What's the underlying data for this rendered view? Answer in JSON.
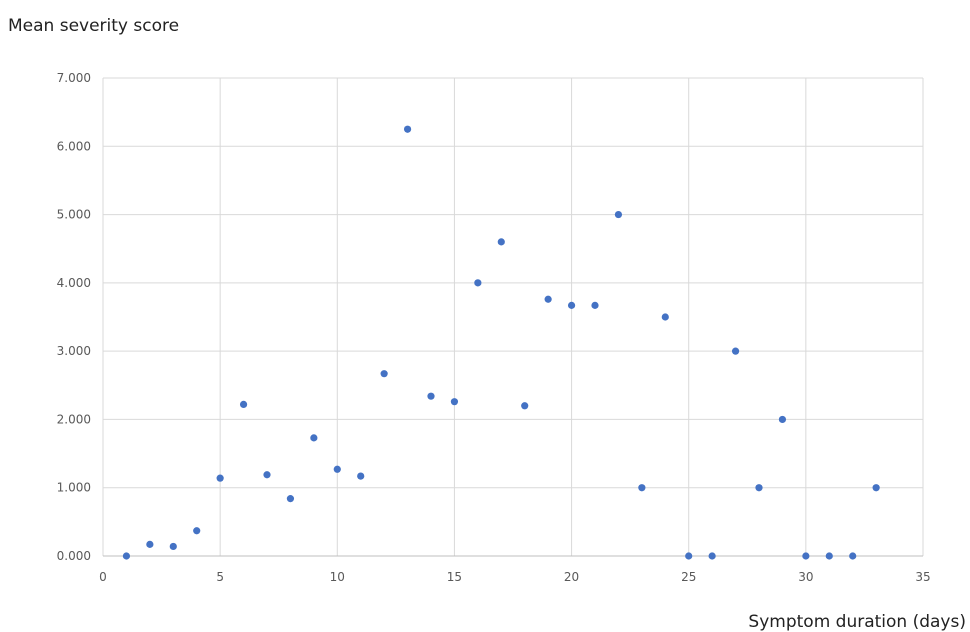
{
  "chart_data": {
    "type": "scatter",
    "ylabel": "Mean severity score",
    "xlabel": "Symptom duration (days)",
    "xlim": [
      0,
      35
    ],
    "ylim": [
      0,
      7
    ],
    "x_ticks": [
      0,
      5,
      10,
      15,
      20,
      25,
      30,
      35
    ],
    "y_ticks": [
      0,
      1,
      2,
      3,
      4,
      5,
      6,
      7
    ],
    "y_tick_labels": [
      "0.000",
      "1.000",
      "2.000",
      "3.000",
      "4.000",
      "5.000",
      "6.000",
      "7.000"
    ],
    "grid": true,
    "marker_color": "#4472c4",
    "series": [
      {
        "points": [
          [
            1,
            0.0
          ],
          [
            2,
            0.17
          ],
          [
            3,
            0.14
          ],
          [
            4,
            0.37
          ],
          [
            5,
            1.14
          ],
          [
            6,
            2.22
          ],
          [
            7,
            1.19
          ],
          [
            8,
            0.84
          ],
          [
            9,
            1.73
          ],
          [
            10,
            1.27
          ],
          [
            11,
            1.17
          ],
          [
            12,
            2.67
          ],
          [
            13,
            6.25
          ],
          [
            14,
            2.34
          ],
          [
            15,
            2.26
          ],
          [
            16,
            4.0
          ],
          [
            17,
            4.6
          ],
          [
            18,
            2.2
          ],
          [
            19,
            3.76
          ],
          [
            20,
            3.67
          ],
          [
            21,
            3.67
          ],
          [
            22,
            5.0
          ],
          [
            23,
            1.0
          ],
          [
            24,
            3.5
          ],
          [
            25,
            0.0
          ],
          [
            26,
            0.0
          ],
          [
            27,
            3.0
          ],
          [
            28,
            1.0
          ],
          [
            29,
            2.0
          ],
          [
            30,
            0.0
          ],
          [
            31,
            0.0
          ],
          [
            32,
            0.0
          ],
          [
            33,
            1.0
          ]
        ]
      }
    ]
  }
}
